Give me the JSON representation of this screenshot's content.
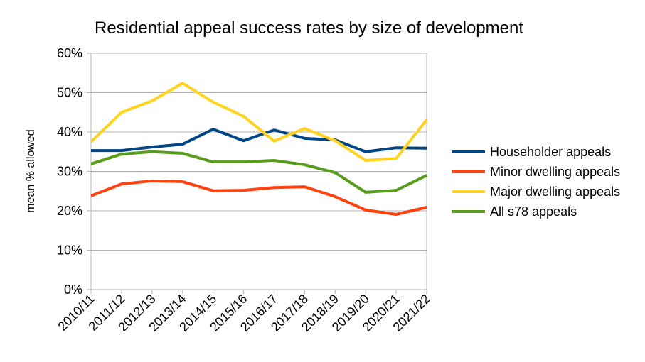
{
  "chart_data": {
    "type": "line",
    "title": "Residential appeal success rates by size of development",
    "xlabel": "",
    "ylabel": "mean % allowed",
    "ylim": [
      0,
      60
    ],
    "yticks": [
      "0%",
      "10%",
      "20%",
      "30%",
      "40%",
      "50%",
      "60%"
    ],
    "grid": true,
    "legend_position": "right",
    "categories": [
      "2010/11",
      "2011/12",
      "2012/13",
      "2013/14",
      "2014/15",
      "2015/16",
      "2016/17",
      "2017/18",
      "2018/19",
      "2019/20",
      "2020/21",
      "2021/22"
    ],
    "series": [
      {
        "name": "Householder appeals",
        "color": "#004586",
        "values": [
          35.3,
          35.3,
          36.2,
          36.9,
          40.7,
          37.8,
          40.5,
          38.4,
          38.0,
          35.0,
          36.0,
          35.9
        ]
      },
      {
        "name": "Minor dwelling appeals",
        "color": "#ff420e",
        "values": [
          23.8,
          26.8,
          27.6,
          27.4,
          25.1,
          25.2,
          25.9,
          26.1,
          23.6,
          20.2,
          19.1,
          20.9
        ]
      },
      {
        "name": "Major dwelling appeals",
        "color": "#ffd320",
        "values": [
          37.5,
          45.0,
          47.9,
          52.4,
          47.6,
          44.0,
          37.7,
          40.9,
          37.8,
          32.8,
          33.3,
          43.1
        ]
      },
      {
        "name": "All s78 appeals",
        "color": "#579d1c",
        "values": [
          31.9,
          34.4,
          35.0,
          34.6,
          32.4,
          32.4,
          32.8,
          31.7,
          29.7,
          24.7,
          25.2,
          29.0
        ]
      }
    ]
  }
}
